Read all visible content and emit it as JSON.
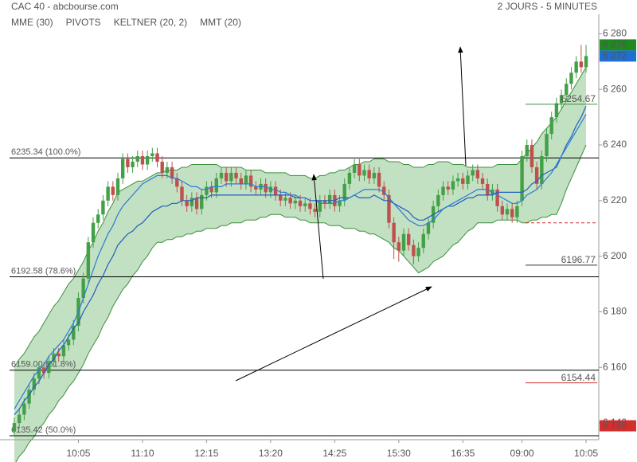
{
  "chart_data": {
    "type": "candlestick",
    "title": "CAC 40 - abcbourse.com",
    "subtitle": "2 JOURS - 5 MINUTES",
    "categories": [
      null,
      null,
      null,
      null,
      null,
      null,
      null,
      null,
      null,
      null,
      null,
      null,
      null,
      "10:05",
      null,
      null,
      null,
      null,
      null,
      null,
      null,
      null,
      null,
      null,
      null,
      null,
      "11:10",
      null,
      null,
      null,
      null,
      null,
      null,
      null,
      null,
      null,
      null,
      null,
      null,
      "12:15",
      null,
      null,
      null,
      null,
      null,
      null,
      null,
      null,
      null,
      null,
      null,
      null,
      "13:20",
      null,
      null,
      null,
      null,
      null,
      null,
      null,
      null,
      null,
      null,
      null,
      null,
      "14:25",
      null,
      null,
      null,
      null,
      null,
      null,
      null,
      null,
      null,
      null,
      null,
      null,
      "15:30",
      null,
      null,
      null,
      null,
      null,
      null,
      null,
      null,
      null,
      null,
      null,
      null,
      "16:35",
      null,
      null,
      null,
      null,
      null,
      null,
      null,
      null,
      null,
      null,
      null,
      "09:00",
      null,
      null,
      null,
      null,
      null,
      null,
      null,
      null,
      null,
      null,
      null,
      null,
      "10:05"
    ],
    "open": [
      6137,
      6140,
      6143,
      6147,
      6152,
      6156,
      6160,
      6158,
      6162,
      6165,
      6164,
      6168,
      6170,
      6175,
      6185,
      6192,
      6205,
      6212,
      6215,
      6220,
      6225,
      6222,
      6228,
      6235,
      6232,
      6234,
      6236,
      6233,
      6236,
      6237,
      6234,
      6230,
      6232,
      6228,
      6225,
      6220,
      6218,
      6221,
      6217,
      6222,
      6225,
      6223,
      6228,
      6230,
      6227,
      6230,
      6228,
      6226,
      6229,
      6225,
      6224,
      6226,
      6223,
      6225,
      6222,
      6220,
      6221,
      6219,
      6220,
      6218,
      6219,
      6217,
      6216,
      6220,
      6219,
      6222,
      6218,
      6220,
      6226,
      6230,
      6233,
      6229,
      6231,
      6228,
      6230,
      6225,
      6222,
      6212,
      6205,
      6202,
      6208,
      6204,
      6200,
      6203,
      6208,
      6212,
      6218,
      6222,
      6225,
      6224,
      6227,
      6228,
      6226,
      6229,
      6231,
      6228,
      6226,
      6222,
      6224,
      6218,
      6215,
      6217,
      6214,
      6220,
      6236,
      6240,
      6232,
      6226,
      6236,
      6244,
      6250,
      6255,
      6258,
      6262,
      6266,
      6270,
      6268
    ],
    "high": [
      6142,
      6145,
      6149,
      6154,
      6158,
      6162,
      6162,
      6164,
      6167,
      6167,
      6170,
      6172,
      6177,
      6187,
      6194,
      6207,
      6214,
      6217,
      6222,
      6227,
      6227,
      6230,
      6237,
      6237,
      6236,
      6238,
      6238,
      6238,
      6239,
      6239,
      6236,
      6234,
      6234,
      6230,
      6227,
      6222,
      6223,
      6223,
      6224,
      6227,
      6227,
      6230,
      6232,
      6232,
      6232,
      6232,
      6230,
      6231,
      6231,
      6227,
      6228,
      6228,
      6227,
      6227,
      6224,
      6223,
      6223,
      6222,
      6222,
      6221,
      6221,
      6219,
      6222,
      6222,
      6224,
      6224,
      6222,
      6228,
      6232,
      6235,
      6235,
      6233,
      6233,
      6232,
      6232,
      6227,
      6224,
      6214,
      6207,
      6210,
      6210,
      6206,
      6205,
      6210,
      6214,
      6220,
      6224,
      6227,
      6227,
      6229,
      6230,
      6230,
      6231,
      6233,
      6233,
      6230,
      6228,
      6226,
      6226,
      6220,
      6219,
      6219,
      6220,
      6238,
      6242,
      6242,
      6234,
      6238,
      6246,
      6252,
      6257,
      6260,
      6264,
      6268,
      6272,
      6276,
      6276
    ],
    "low": [
      6135,
      6138,
      6141,
      6145,
      6150,
      6154,
      6156,
      6156,
      6160,
      6162,
      6162,
      6166,
      6168,
      6173,
      6183,
      6190,
      6203,
      6210,
      6213,
      6218,
      6220,
      6220,
      6226,
      6230,
      6230,
      6232,
      6231,
      6231,
      6234,
      6232,
      6228,
      6228,
      6226,
      6223,
      6218,
      6216,
      6216,
      6215,
      6215,
      6220,
      6221,
      6221,
      6226,
      6225,
      6225,
      6226,
      6224,
      6224,
      6223,
      6222,
      6222,
      6221,
      6221,
      6220,
      6218,
      6218,
      6217,
      6217,
      6216,
      6216,
      6215,
      6214,
      6214,
      6217,
      6217,
      6216,
      6216,
      6218,
      6224,
      6228,
      6227,
      6227,
      6226,
      6226,
      6223,
      6220,
      6210,
      6199,
      6198,
      6200,
      6202,
      6197,
      6198,
      6201,
      6206,
      6210,
      6216,
      6220,
      6222,
      6222,
      6225,
      6224,
      6224,
      6227,
      6226,
      6224,
      6220,
      6220,
      6216,
      6213,
      6213,
      6212,
      6212,
      6218,
      6234,
      6230,
      6224,
      6224,
      6234,
      6242,
      6248,
      6253,
      6256,
      6260,
      6264,
      6266,
      6266
    ],
    "close": [
      6140,
      6143,
      6147,
      6152,
      6156,
      6160,
      6158,
      6162,
      6165,
      6164,
      6168,
      6170,
      6175,
      6185,
      6192,
      6205,
      6212,
      6215,
      6220,
      6225,
      6222,
      6228,
      6235,
      6232,
      6234,
      6236,
      6233,
      6236,
      6237,
      6234,
      6230,
      6232,
      6228,
      6225,
      6220,
      6218,
      6221,
      6217,
      6222,
      6225,
      6223,
      6228,
      6230,
      6227,
      6230,
      6228,
      6226,
      6229,
      6225,
      6224,
      6226,
      6223,
      6225,
      6222,
      6220,
      6221,
      6219,
      6220,
      6218,
      6219,
      6217,
      6216,
      6220,
      6219,
      6222,
      6218,
      6220,
      6226,
      6230,
      6233,
      6229,
      6231,
      6228,
      6230,
      6225,
      6222,
      6212,
      6205,
      6202,
      6208,
      6204,
      6200,
      6203,
      6208,
      6212,
      6218,
      6222,
      6225,
      6224,
      6227,
      6228,
      6226,
      6229,
      6231,
      6228,
      6226,
      6222,
      6224,
      6218,
      6215,
      6217,
      6214,
      6218,
      6236,
      6240,
      6232,
      6226,
      6236,
      6244,
      6250,
      6255,
      6258,
      6262,
      6266,
      6270,
      6268,
      6272
    ],
    "up_color": "#43a047",
    "down_color": "#c0504d",
    "series": [
      {
        "name": "MME (30)",
        "color": "#1f5fbf",
        "values": [
          6143,
          6145,
          6148,
          6150,
          6153,
          6155,
          6158,
          6161,
          6163,
          6166,
          6168,
          6171,
          6174,
          6176,
          6180,
          6183,
          6186,
          6190,
          6193,
          6197,
          6200,
          6204,
          6206,
          6208,
          6209,
          6211,
          6212,
          6214,
          6216,
          6217,
          6218,
          6218,
          6219,
          6219,
          6220,
          6220,
          6220,
          6221,
          6221,
          6221,
          6222,
          6222,
          6222,
          6222,
          6222,
          6222,
          6222,
          6222,
          6222,
          6222,
          6222,
          6222,
          6222,
          6222,
          6222,
          6222,
          6222,
          6221,
          6221,
          6221,
          6220,
          6220,
          6220,
          6220,
          6220,
          6220,
          6221,
          6221,
          6221,
          6222,
          6221,
          6221,
          6221,
          6222,
          6221,
          6220,
          6220,
          6219,
          6218,
          6217,
          6216,
          6214,
          6213,
          6213,
          6214,
          6215,
          6216,
          6217,
          6218,
          6218,
          6219,
          6220,
          6221,
          6221,
          6222,
          6222,
          6222,
          6222,
          6223,
          6223,
          6223,
          6223,
          6223,
          6223,
          6224,
          6226,
          6227,
          6229,
          6230,
          6231,
          6232,
          6236,
          6240,
          6243,
          6247,
          6250,
          6254
        ]
      },
      {
        "name": "PIVOTS",
        "color": "#555555",
        "levels": [
          {
            "value": 6254.67,
            "color": "#3d8f3d",
            "dashed": false,
            "show_label": true
          },
          {
            "value": 6196.77,
            "color": "#333333",
            "dashed": false,
            "show_label": true
          },
          {
            "value": 6154.44,
            "color": "#d32f2f",
            "dashed": false,
            "show_label": true
          },
          {
            "value": 6212,
            "color": "#d32f2f",
            "dashed": true,
            "show_label": false
          }
        ]
      },
      {
        "name": "KELTNER (20, 2)",
        "color": "#3d8f3d",
        "fill": "rgba(80,165,80,0.35)",
        "upper": [
          6160,
          6163,
          6165,
          6168,
          6171,
          6173,
          6176,
          6179,
          6182,
          6184,
          6187,
          6190,
          6192,
          6195,
          6198,
          6202,
          6205,
          6209,
          6212,
          6216,
          6219,
          6223,
          6224,
          6225,
          6226,
          6227,
          6227,
          6228,
          6229,
          6230,
          6230,
          6231,
          6231,
          6231,
          6232,
          6232,
          6233,
          6233,
          6233,
          6233,
          6233,
          6233,
          6232,
          6232,
          6232,
          6232,
          6232,
          6231,
          6231,
          6231,
          6231,
          6230,
          6230,
          6230,
          6230,
          6230,
          6229,
          6229,
          6229,
          6229,
          6228,
          6228,
          6229,
          6229,
          6230,
          6230,
          6231,
          6231,
          6232,
          6233,
          6233,
          6234,
          6234,
          6235,
          6235,
          6235,
          6234,
          6234,
          6234,
          6233,
          6233,
          6232,
          6232,
          6232,
          6233,
          6233,
          6234,
          6234,
          6234,
          6233,
          6233,
          6233,
          6232,
          6232,
          6232,
          6232,
          6232,
          6232,
          6233,
          6233,
          6233,
          6233,
          6233,
          6235,
          6237,
          6239,
          6241,
          6244,
          6246,
          6248,
          6250,
          6253,
          6256,
          6259,
          6262,
          6265,
          6268
        ],
        "lower": [
          6125,
          6128,
          6130,
          6133,
          6135,
          6138,
          6140,
          6143,
          6145,
          6148,
          6150,
          6153,
          6155,
          6158,
          6161,
          6165,
          6168,
          6171,
          6175,
          6178,
          6182,
          6185,
          6188,
          6190,
          6193,
          6195,
          6198,
          6200,
          6203,
          6205,
          6205,
          6206,
          6206,
          6207,
          6207,
          6208,
          6208,
          6209,
          6209,
          6210,
          6210,
          6210,
          6211,
          6211,
          6212,
          6212,
          6212,
          6213,
          6213,
          6213,
          6214,
          6214,
          6215,
          6215,
          6215,
          6214,
          6214,
          6214,
          6213,
          6213,
          6212,
          6212,
          6212,
          6212,
          6211,
          6211,
          6211,
          6210,
          6210,
          6210,
          6209,
          6209,
          6208,
          6208,
          6207,
          6206,
          6205,
          6203,
          6202,
          6200,
          6198,
          6196,
          6194,
          6195,
          6196,
          6198,
          6199,
          6200,
          6202,
          6204,
          6205,
          6207,
          6209,
          6210,
          6212,
          6212,
          6212,
          6212,
          6213,
          6213,
          6213,
          6213,
          6213,
          6212,
          6212,
          6213,
          6213,
          6214,
          6214,
          6215,
          6215,
          6219,
          6224,
          6228,
          6232,
          6236,
          6240
        ]
      },
      {
        "name": "MMT (20)",
        "color": "#2a7bd6",
        "values": [
          6145,
          6148,
          6151,
          6154,
          6157,
          6159,
          6161,
          6164,
          6166,
          6168,
          6170,
          6173,
          6176,
          6180,
          6185,
          6190,
          6195,
          6200,
          6204,
          6208,
          6211,
          6215,
          6218,
          6220,
          6222,
          6224,
          6226,
          6227,
          6228,
          6229,
          6229,
          6229,
          6228,
          6228,
          6227,
          6226,
          6225,
          6225,
          6224,
          6224,
          6225,
          6225,
          6225,
          6226,
          6226,
          6226,
          6226,
          6226,
          6226,
          6225,
          6225,
          6225,
          6224,
          6224,
          6223,
          6223,
          6222,
          6222,
          6221,
          6221,
          6220,
          6220,
          6219,
          6219,
          6219,
          6219,
          6220,
          6220,
          6221,
          6222,
          6223,
          6224,
          6224,
          6224,
          6224,
          6223,
          6221,
          6219,
          6217,
          6215,
          6213,
          6212,
          6211,
          6211,
          6212,
          6213,
          6215,
          6217,
          6218,
          6219,
          6220,
          6221,
          6222,
          6223,
          6224,
          6224,
          6224,
          6223,
          6222,
          6221,
          6220,
          6219,
          6219,
          6220,
          6222,
          6223,
          6224,
          6226,
          6228,
          6230,
          6233,
          6236,
          6239,
          6242,
          6245,
          6248,
          6251
        ]
      }
    ],
    "levels": [
      {
        "value": 6235.34,
        "label": "6235.34  (100.0%)"
      },
      {
        "value": 6192.58,
        "label": "6192.58  (78.6%)"
      },
      {
        "value": 6159.0,
        "label": "6159.00  (61.8%)"
      },
      {
        "value": 6135.42,
        "label": "6135.42  (50.0%)"
      }
    ],
    "price_tags": [
      {
        "value": 6276,
        "label": "6 276",
        "color": "#1f8a1f"
      },
      {
        "value": 6272,
        "label": "6 272",
        "color": "#1e6fd0"
      },
      {
        "value": 6139,
        "label": "6 139",
        "color": "#d32f2f"
      }
    ],
    "ylim": [
      6134,
      6287
    ],
    "yticks": [
      {
        "value": 6140,
        "label": "6 140"
      },
      {
        "value": 6160,
        "label": "6 160"
      },
      {
        "value": 6180,
        "label": "6 180"
      },
      {
        "value": 6200,
        "label": "6 200"
      },
      {
        "value": 6220,
        "label": "6 220"
      },
      {
        "value": 6240,
        "label": "6 240"
      },
      {
        "value": 6260,
        "label": "6 260"
      },
      {
        "value": 6280,
        "label": "6 280"
      }
    ],
    "grid": false
  }
}
